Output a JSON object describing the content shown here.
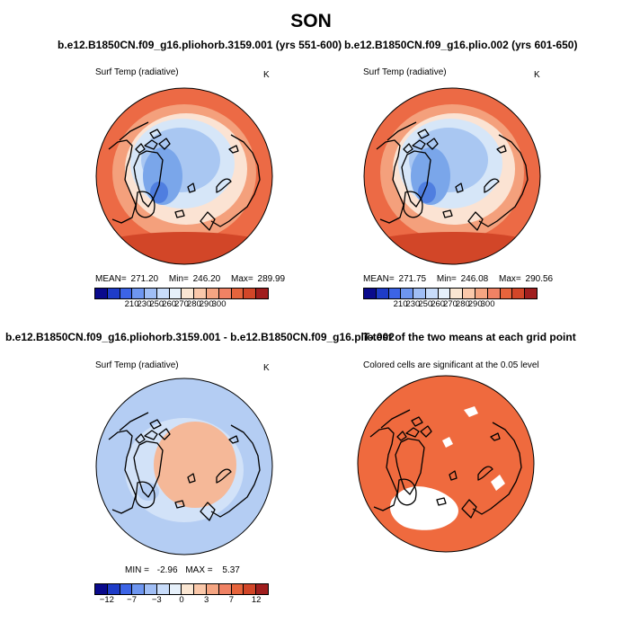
{
  "page": {
    "title": "SON"
  },
  "panels": [
    {
      "id": "p1",
      "title": "b.e12.B1850CN.f09_g16.pliohorb.3159.001 (yrs 551-600)",
      "left_label": "Surf Temp (radiative)",
      "right_label": "K",
      "stats": {
        "mean_label": "MEAN=",
        "mean": "271.20",
        "min_label": "Min=",
        "min": "246.20",
        "max_label": "Max=",
        "max": "289.99"
      },
      "map_style": "temperature"
    },
    {
      "id": "p2",
      "title": "b.e12.B1850CN.f09_g16.plio.002 (yrs 601-650)",
      "left_label": "Surf Temp (radiative)",
      "right_label": "K",
      "stats": {
        "mean_label": "MEAN=",
        "mean": "271.75",
        "min_label": "Min=",
        "min": "246.08",
        "max_label": "Max=",
        "max": "290.56"
      },
      "map_style": "temperature"
    },
    {
      "id": "p3",
      "title": "b.e12.B1850CN.f09_g16.pliohorb.3159.001 - b.e12.B1850CN.f09_g16.plio.002",
      "left_label": "Surf Temp (radiative)",
      "right_label": "K",
      "stats": {
        "min_label": "MIN =",
        "min": "-2.96",
        "max_label": "MAX =",
        "max": "5.37"
      },
      "map_style": "difference"
    },
    {
      "id": "p4",
      "title": "T-test of the two means at each grid point",
      "left_label": "Colored cells are significant at the 0.05 level",
      "map_style": "significance"
    }
  ],
  "colorbars": {
    "temperature": {
      "colors": [
        "#0a0a8c",
        "#1e3cc8",
        "#3c64e6",
        "#6e96f0",
        "#a0bef5",
        "#c8dcfa",
        "#e6f0fa",
        "#fae6d2",
        "#fac8aa",
        "#f5a582",
        "#f08264",
        "#e6643c",
        "#d24628",
        "#a01e1e"
      ],
      "labels": [
        "210",
        "230",
        "250",
        "260",
        "270",
        "280",
        "290",
        "300"
      ]
    },
    "difference": {
      "colors": [
        "#0a0a8c",
        "#1e3cc8",
        "#3c64e6",
        "#6e96f0",
        "#a0bef5",
        "#c8dcfa",
        "#e6f0fa",
        "#fae6d2",
        "#fac8aa",
        "#f5a582",
        "#f08264",
        "#e6643c",
        "#d24628",
        "#a01e1e"
      ],
      "labels": [
        "−12",
        "−7",
        "−3",
        "0",
        "3",
        "7",
        "12"
      ]
    }
  },
  "colors": {
    "warm": "#ec6a45",
    "warm_light": "#f4a07c",
    "pale": "#fbe3d3",
    "cool_pale": "#d6e6f8",
    "cool": "#a9c7f2",
    "cool_mid": "#7aa6ea",
    "cool_dark": "#4f7ee0",
    "diff_blue": "#b4cdf3",
    "diff_blue2": "#d2e2f8",
    "diff_orange": "#f5b898",
    "sig": "#ef6a3e"
  }
}
